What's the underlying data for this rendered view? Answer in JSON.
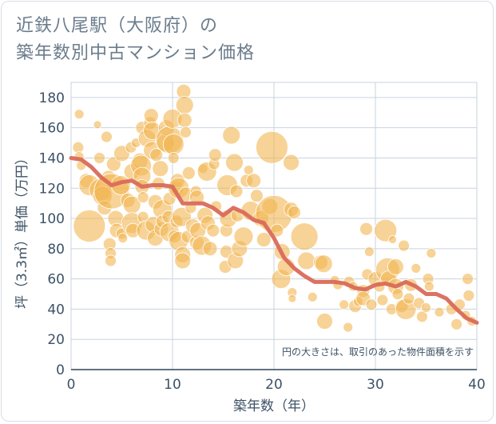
{
  "title_line1": "近鉄八尾駅（大阪府）の",
  "title_line2": "築年数別中古マンション価格",
  "chart_data": {
    "type": "scatter",
    "xlabel": "築年数（年）",
    "ylabel": "坪（3.3㎡）単価（万円）",
    "xlim": [
      0,
      40
    ],
    "ylim": [
      0,
      190
    ],
    "x_ticks": [
      0,
      10,
      20,
      30,
      40
    ],
    "y_ticks": [
      0,
      20,
      40,
      60,
      80,
      100,
      120,
      140,
      160,
      180
    ],
    "grid": true,
    "note": "円の大きさは、取引のあった物件面積を示す",
    "colors": {
      "bubble": "#f2b552",
      "line": "#d96a5a",
      "grid": "#c9d3de"
    },
    "bubbles": [
      [
        0.8,
        169,
        6
      ],
      [
        0.7,
        147,
        7
      ],
      [
        0.8,
        141,
        6
      ],
      [
        1.0,
        135,
        6
      ],
      [
        1.5,
        125,
        9
      ],
      [
        1.8,
        122,
        13
      ],
      [
        1.8,
        95,
        20
      ],
      [
        2.6,
        162,
        5
      ],
      [
        2.8,
        140,
        7
      ],
      [
        2.9,
        119,
        14
      ],
      [
        3.1,
        115,
        12
      ],
      [
        3.3,
        107,
        9
      ],
      [
        3.5,
        154,
        7
      ],
      [
        3.7,
        127,
        9
      ],
      [
        3.8,
        83,
        8
      ],
      [
        3.9,
        77,
        7
      ],
      [
        3.9,
        72,
        7
      ],
      [
        4.0,
        118,
        22
      ],
      [
        4.2,
        136,
        9
      ],
      [
        4.4,
        100,
        10
      ],
      [
        4.5,
        92,
        9
      ],
      [
        4.9,
        122,
        12
      ],
      [
        5.0,
        143,
        10
      ],
      [
        5.0,
        90,
        7
      ],
      [
        5.1,
        87,
        6
      ],
      [
        5.6,
        112,
        9
      ],
      [
        5.9,
        147,
        7
      ],
      [
        6.0,
        131,
        10
      ],
      [
        6.0,
        109,
        11
      ],
      [
        6.0,
        97,
        13
      ],
      [
        6.1,
        92,
        9
      ],
      [
        6.4,
        150,
        6
      ],
      [
        6.8,
        138,
        10
      ],
      [
        6.9,
        135,
        13
      ],
      [
        7.0,
        128,
        11
      ],
      [
        7.0,
        121,
        9
      ],
      [
        7.0,
        160,
        8
      ],
      [
        7.1,
        114,
        7
      ],
      [
        7.1,
        101,
        7
      ],
      [
        7.4,
        92,
        12
      ],
      [
        7.5,
        153,
        11
      ],
      [
        7.8,
        163,
        8
      ],
      [
        7.9,
        168,
        9
      ],
      [
        8.0,
        158,
        11
      ],
      [
        8.0,
        145,
        11
      ],
      [
        8.1,
        96,
        10
      ],
      [
        8.3,
        111,
        9
      ],
      [
        8.3,
        87,
        10
      ],
      [
        8.4,
        142,
        8
      ],
      [
        8.6,
        123,
        8
      ],
      [
        8.8,
        133,
        10
      ],
      [
        8.9,
        93,
        9
      ],
      [
        9.0,
        106,
        12
      ],
      [
        9.0,
        98,
        8
      ],
      [
        9.3,
        150,
        11
      ],
      [
        9.4,
        160,
        10
      ],
      [
        9.6,
        101,
        8
      ],
      [
        9.7,
        113,
        8
      ],
      [
        9.7,
        91,
        12
      ],
      [
        9.7,
        152,
        17
      ],
      [
        10.0,
        166,
        12
      ],
      [
        10.1,
        149,
        13
      ],
      [
        10.1,
        140,
        7
      ],
      [
        10.2,
        88,
        8
      ],
      [
        10.4,
        120,
        9
      ],
      [
        10.4,
        98,
        8
      ],
      [
        10.5,
        125,
        9
      ],
      [
        10.6,
        85,
        12
      ],
      [
        10.6,
        120,
        13
      ],
      [
        10.9,
        101,
        12
      ],
      [
        11.0,
        76,
        10
      ],
      [
        11.0,
        72,
        10
      ],
      [
        11.1,
        184,
        9
      ],
      [
        11.2,
        175,
        11
      ],
      [
        11.2,
        165,
        9
      ],
      [
        11.3,
        157,
        7
      ],
      [
        11.3,
        116,
        9
      ],
      [
        11.5,
        88,
        8
      ],
      [
        11.6,
        130,
        8
      ],
      [
        11.8,
        107,
        7
      ],
      [
        12.0,
        95,
        9
      ],
      [
        12.3,
        118,
        7
      ],
      [
        12.4,
        114,
        9
      ],
      [
        12.4,
        84,
        9
      ],
      [
        12.5,
        92,
        10
      ],
      [
        12.9,
        82,
        12
      ],
      [
        13.0,
        133,
        6
      ],
      [
        13.2,
        102,
        10
      ],
      [
        13.4,
        131,
        12
      ],
      [
        13.5,
        97,
        9
      ],
      [
        13.7,
        80,
        9
      ],
      [
        14.0,
        92,
        8
      ],
      [
        14.1,
        136,
        7
      ],
      [
        14.2,
        142,
        8
      ],
      [
        14.3,
        108,
        7
      ],
      [
        15.2,
        68,
        8
      ],
      [
        15.3,
        78,
        8
      ],
      [
        15.3,
        92,
        8
      ],
      [
        15.4,
        122,
        13
      ],
      [
        15.5,
        100,
        11
      ],
      [
        15.8,
        155,
        11
      ],
      [
        16.1,
        137,
        11
      ],
      [
        16.2,
        72,
        10
      ],
      [
        16.3,
        118,
        8
      ],
      [
        16.4,
        102,
        8
      ],
      [
        16.6,
        80,
        10
      ],
      [
        17.0,
        88,
        12
      ],
      [
        17.3,
        125,
        8
      ],
      [
        17.5,
        132,
        6
      ],
      [
        17.7,
        105,
        12
      ],
      [
        18.0,
        125,
        9
      ],
      [
        18.3,
        115,
        8
      ],
      [
        18.7,
        100,
        10
      ],
      [
        19.0,
        86,
        9
      ],
      [
        19.6,
        108,
        10
      ],
      [
        19.8,
        147,
        20
      ],
      [
        20.0,
        103,
        23
      ],
      [
        20.3,
        92,
        8
      ],
      [
        20.7,
        60,
        12
      ],
      [
        20.8,
        78,
        10
      ],
      [
        21.2,
        68,
        11
      ],
      [
        21.7,
        137,
        10
      ],
      [
        21.7,
        106,
        9
      ],
      [
        21.8,
        51,
        6
      ],
      [
        21.8,
        47,
        5
      ],
      [
        22.0,
        104,
        8
      ],
      [
        23.0,
        88,
        17
      ],
      [
        23.2,
        72,
        11
      ],
      [
        23.8,
        48,
        6
      ],
      [
        24.6,
        71,
        9
      ],
      [
        24.9,
        70,
        11
      ],
      [
        25.0,
        32,
        10
      ],
      [
        26.0,
        59,
        6
      ],
      [
        26.3,
        56,
        6
      ],
      [
        26.9,
        43,
        6
      ],
      [
        27.3,
        28,
        6
      ],
      [
        27.4,
        58,
        7
      ],
      [
        27.8,
        55,
        6
      ],
      [
        28.0,
        42,
        8
      ],
      [
        28.3,
        45,
        6
      ],
      [
        28.8,
        52,
        8
      ],
      [
        28.8,
        47,
        9
      ],
      [
        29.1,
        93,
        8
      ],
      [
        29.2,
        63,
        7
      ],
      [
        29.4,
        78,
        6
      ],
      [
        29.6,
        43,
        7
      ],
      [
        30.0,
        60,
        9
      ],
      [
        30.4,
        55,
        7
      ],
      [
        30.7,
        46,
        7
      ],
      [
        31.0,
        92,
        14
      ],
      [
        31.2,
        66,
        15
      ],
      [
        31.3,
        60,
        10
      ],
      [
        31.6,
        40,
        7
      ],
      [
        31.7,
        86,
        5
      ],
      [
        32.0,
        68,
        10
      ],
      [
        32.0,
        55,
        10
      ],
      [
        32.2,
        50,
        7
      ],
      [
        32.6,
        42,
        8
      ],
      [
        32.8,
        82,
        7
      ],
      [
        33.0,
        40,
        13
      ],
      [
        33.3,
        47,
        7
      ],
      [
        33.5,
        56,
        8
      ],
      [
        34.0,
        67,
        6
      ],
      [
        34.3,
        44,
        7
      ],
      [
        34.6,
        35,
        7
      ],
      [
        35.0,
        41,
        6
      ],
      [
        35.2,
        60,
        7
      ],
      [
        35.3,
        55,
        6
      ],
      [
        35.5,
        77,
        6
      ],
      [
        36.3,
        38,
        6
      ],
      [
        37.5,
        40,
        7
      ],
      [
        38.0,
        30,
        7
      ],
      [
        38.3,
        43,
        7
      ],
      [
        38.9,
        36,
        6
      ],
      [
        39.1,
        60,
        7
      ],
      [
        39.2,
        49,
        7
      ],
      [
        39.5,
        32,
        6
      ]
    ],
    "trend": [
      [
        0,
        140
      ],
      [
        1,
        139
      ],
      [
        2,
        134
      ],
      [
        3,
        127
      ],
      [
        4,
        122
      ],
      [
        5,
        124
      ],
      [
        6,
        125
      ],
      [
        7,
        121
      ],
      [
        8,
        122
      ],
      [
        9,
        122
      ],
      [
        10,
        121
      ],
      [
        11,
        110
      ],
      [
        12,
        110
      ],
      [
        13,
        110
      ],
      [
        14,
        107
      ],
      [
        15,
        102
      ],
      [
        16,
        107
      ],
      [
        17,
        104
      ],
      [
        18,
        99
      ],
      [
        19,
        97
      ],
      [
        20,
        87
      ],
      [
        21,
        74
      ],
      [
        22,
        67
      ],
      [
        23,
        62
      ],
      [
        24,
        58
      ],
      [
        25,
        58
      ],
      [
        26,
        58
      ],
      [
        27,
        57
      ],
      [
        28,
        54
      ],
      [
        29,
        53
      ],
      [
        30,
        56
      ],
      [
        31,
        57
      ],
      [
        32,
        55
      ],
      [
        33,
        58
      ],
      [
        34,
        55
      ],
      [
        35,
        50
      ],
      [
        36,
        50
      ],
      [
        37,
        47
      ],
      [
        38,
        40
      ],
      [
        39,
        34
      ],
      [
        40,
        31
      ]
    ]
  }
}
